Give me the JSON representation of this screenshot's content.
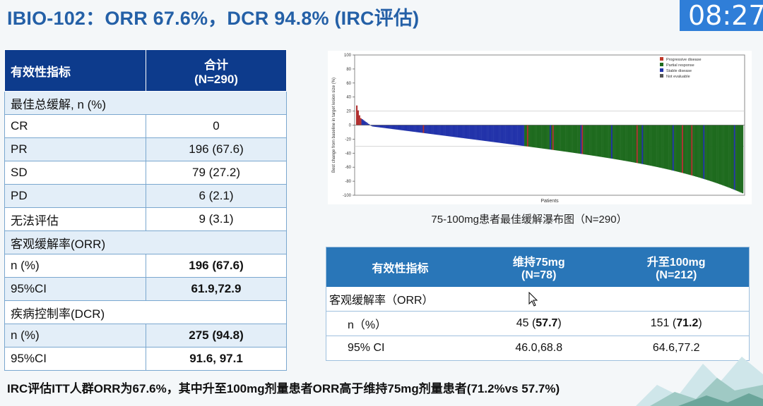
{
  "title": "IBIO-102：ORR 67.6%，DCR 94.8% (IRC评估)",
  "clock": "08:27",
  "table1": {
    "header": [
      "有效性指标",
      "合计",
      "(N=290)"
    ],
    "rows": [
      {
        "label": "最佳总缓解, n (%)",
        "value": "",
        "bold": false,
        "span": true
      },
      {
        "label": "CR",
        "value": "0",
        "bold": false
      },
      {
        "label": "PR",
        "value": "196 (67.6)",
        "bold": false
      },
      {
        "label": "SD",
        "value": "79 (27.2)",
        "bold": false
      },
      {
        "label": "PD",
        "value": "6 (2.1)",
        "bold": false
      },
      {
        "label": "无法评估",
        "value": "9 (3.1)",
        "bold": false
      },
      {
        "label": "客观缓解率(ORR)",
        "value": "",
        "bold": false,
        "span": true
      },
      {
        "label": " n (%)",
        "value": "196 (67.6)",
        "bold": true
      },
      {
        "label": "95%CI",
        "value": "61.9,72.9",
        "bold": true
      },
      {
        "label": "疾病控制率(DCR)",
        "value": "",
        "bold": false,
        "span": true
      },
      {
        "label": " n (%)",
        "value": "275 (94.8)",
        "bold": true
      },
      {
        "label": "95%CI",
        "value": "91.6, 97.1",
        "bold": true
      }
    ]
  },
  "chart_data": {
    "type": "bar",
    "title": "",
    "xlabel": "Patients",
    "ylabel": "Best change from baseline in target lesion size (%)",
    "ylim": [
      -100,
      100
    ],
    "yticks": [
      "100",
      "80",
      "60",
      "40",
      "20",
      "0",
      "-20",
      "-40",
      "-60",
      "-80",
      "-100"
    ],
    "legend": [
      {
        "name": "Progressive disease",
        "color": "#c0392b"
      },
      {
        "name": "Partial response",
        "color": "#1e6b1e"
      },
      {
        "name": "Stable disease",
        "color": "#2233aa"
      },
      {
        "name": "Not evaluable",
        "color": "#555555"
      }
    ],
    "legend_position": "top-right",
    "reference_lines": [
      20,
      -30
    ],
    "n_patients": 290
  },
  "chart_caption": "75-100mg患者最佳缓解瀑布图（N=290）",
  "table2": {
    "headers": [
      {
        "line1": "有效性指标",
        "line2": ""
      },
      {
        "line1": "维持75mg",
        "line2": "(N=78)"
      },
      {
        "line1": "升至100mg",
        "line2": "(N=212)"
      }
    ],
    "section": "客观缓解率（ORR）",
    "rows": [
      {
        "label": "n（%）",
        "v1a": "45 (",
        "v1b": "57.7",
        "v1c": ")",
        "v2a": "151 (",
        "v2b": "71.2",
        "v2c": ")"
      },
      {
        "label": "95% CI",
        "v1a": "46.0,68.8",
        "v1b": "",
        "v1c": "",
        "v2a": "64.6,77.2",
        "v2b": "",
        "v2c": ""
      }
    ]
  },
  "footer": "IRC评估ITT人群ORR为67.6%，其中升至100mg剂量患者ORR高于维持75mg剂量患者(71.2%vs 57.7%)"
}
